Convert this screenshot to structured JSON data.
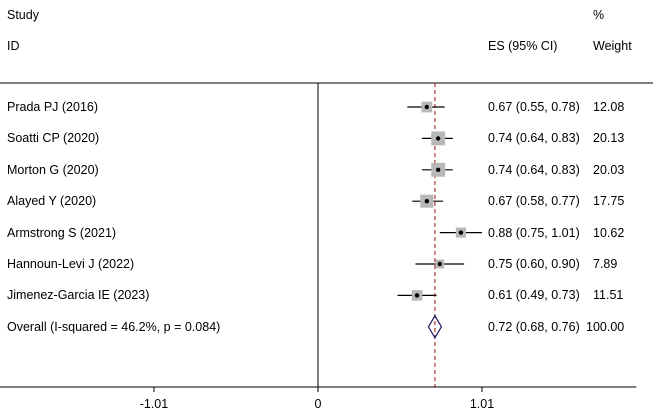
{
  "header": {
    "study_label": "Study",
    "id_label": "ID",
    "es_label": "ES (95% CI)",
    "pct_label": "%",
    "weight_label": "Weight"
  },
  "studies": [
    {
      "name": "Prada PJ (2016)",
      "es": 0.67,
      "lo": 0.55,
      "hi": 0.78,
      "ci_text": "0.67 (0.55, 0.78)",
      "weight": "12.08"
    },
    {
      "name": "Soatti CP (2020)",
      "es": 0.74,
      "lo": 0.64,
      "hi": 0.83,
      "ci_text": "0.74 (0.64, 0.83)",
      "weight": "20.13"
    },
    {
      "name": "Morton G (2020)",
      "es": 0.74,
      "lo": 0.64,
      "hi": 0.83,
      "ci_text": "0.74 (0.64, 0.83)",
      "weight": "20.03"
    },
    {
      "name": "Alayed Y (2020)",
      "es": 0.67,
      "lo": 0.58,
      "hi": 0.77,
      "ci_text": "0.67 (0.58, 0.77)",
      "weight": "17.75"
    },
    {
      "name": "Armstrong S (2021)",
      "es": 0.88,
      "lo": 0.75,
      "hi": 1.01,
      "ci_text": "0.88 (0.75, 1.01)",
      "weight": "10.62"
    },
    {
      "name": "Hannoun-Levi J (2022)",
      "es": 0.75,
      "lo": 0.6,
      "hi": 0.9,
      "ci_text": "0.75 (0.60, 0.90)",
      "weight": "7.89"
    },
    {
      "name": "Jimenez-Garcia IE (2023)",
      "es": 0.61,
      "lo": 0.49,
      "hi": 0.73,
      "ci_text": "0.61 (0.49, 0.73)",
      "weight": "11.51"
    }
  ],
  "overall": {
    "name": "Overall  (I-squared = 46.2%, p = 0.084)",
    "es": 0.72,
    "lo": 0.68,
    "hi": 0.76,
    "ci_text": "0.72 (0.68, 0.76)",
    "weight": "100.00"
  },
  "chart_data": {
    "type": "forest",
    "xticks": [
      -1.01,
      0,
      1.01
    ],
    "xtick_labels": [
      "-1.01",
      "0",
      "1.01"
    ],
    "xlim": [
      -1.96,
      1.96
    ],
    "null_line": 0,
    "pooled_line": 0.72,
    "colors": {
      "pooled_line": "#b03a2e",
      "diamond": "#1f1a6b",
      "box": "#b8b8b8"
    }
  }
}
